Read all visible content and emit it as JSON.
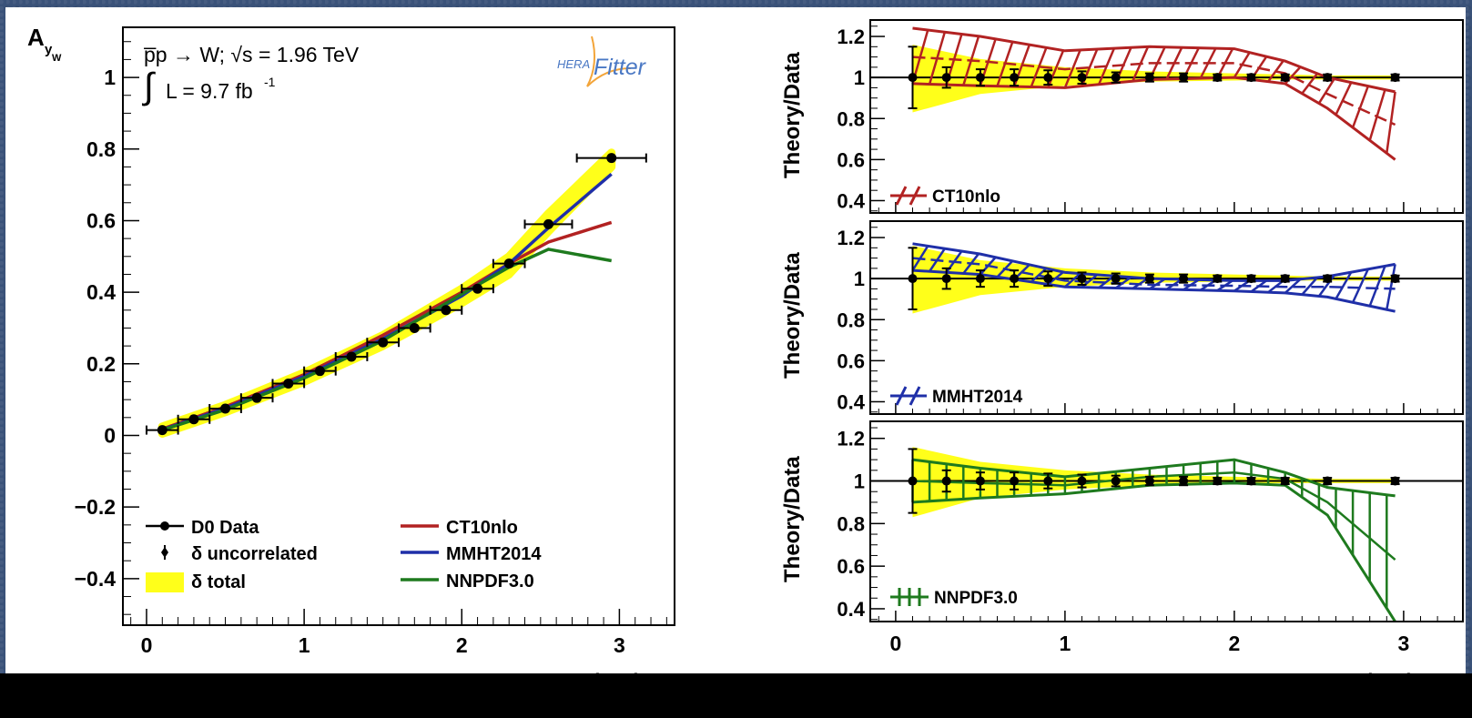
{
  "chart_data": [
    {
      "type": "line",
      "panel": "main",
      "ylabel_main": "A",
      "ylabel_sub": "y",
      "ylabel_subsub": "W",
      "xlabel_main": "|y",
      "xlabel_sub": "W",
      "xlabel_bar_end": "|",
      "xlim": [
        -0.15,
        3.35
      ],
      "ylim": [
        -0.53,
        1.14
      ],
      "xticks": [
        0,
        1,
        2,
        3
      ],
      "xtick_labels": [
        "0",
        "1",
        "2",
        "3"
      ],
      "yticks": [
        -0.4,
        -0.2,
        0,
        0.2,
        0.4,
        0.6,
        0.8,
        1
      ],
      "ytick_labels": [
        "−0.4",
        "−0.2",
        "0",
        "0.2",
        "0.4",
        "0.6",
        "0.8",
        "1"
      ],
      "process_label": "p̅p → W; √s = 1.96 TeV",
      "lumi_label": "L = 9.7 fb",
      "lumi_exp": "-1",
      "logo_hera": "HERA",
      "logo_fitter": "Fitter",
      "data": {
        "name": "D0 Data",
        "x": [
          0.1,
          0.3,
          0.5,
          0.7,
          0.9,
          1.1,
          1.3,
          1.5,
          1.7,
          1.9,
          2.1,
          2.3,
          2.55,
          2.95
        ],
        "y": [
          0.015,
          0.045,
          0.075,
          0.105,
          0.145,
          0.18,
          0.22,
          0.26,
          0.3,
          0.35,
          0.41,
          0.48,
          0.59,
          0.775
        ],
        "xerr": [
          0.1,
          0.1,
          0.1,
          0.1,
          0.1,
          0.1,
          0.1,
          0.1,
          0.1,
          0.1,
          0.1,
          0.1,
          0.15,
          0.22
        ],
        "yerr": [
          0.005,
          0.005,
          0.006,
          0.006,
          0.006,
          0.006,
          0.007,
          0.007,
          0.007,
          0.008,
          0.008,
          0.008,
          0.009,
          0.012
        ]
      },
      "total_band": {
        "x": [
          0.1,
          0.5,
          1.0,
          1.5,
          2.0,
          2.3,
          2.55,
          2.95
        ],
        "lo": [
          0.005,
          0.065,
          0.15,
          0.25,
          0.37,
          0.45,
          0.57,
          0.75
        ],
        "hi": [
          0.025,
          0.085,
          0.175,
          0.28,
          0.41,
          0.5,
          0.62,
          0.79
        ]
      },
      "series": [
        {
          "name": "CT10nlo",
          "color": "#b22222",
          "x": [
            0.1,
            0.5,
            1.0,
            1.5,
            2.0,
            2.3,
            2.55,
            2.95
          ],
          "y": [
            0.018,
            0.08,
            0.17,
            0.28,
            0.4,
            0.48,
            0.54,
            0.595
          ]
        },
        {
          "name": "MMHT2014",
          "color": "#1f2fa8",
          "x": [
            0.1,
            0.5,
            1.0,
            1.5,
            2.0,
            2.3,
            2.55,
            2.95
          ],
          "y": [
            0.016,
            0.076,
            0.165,
            0.27,
            0.39,
            0.48,
            0.58,
            0.73
          ]
        },
        {
          "name": "NNPDF3.0",
          "color": "#1e7a1e",
          "x": [
            0.1,
            0.5,
            1.0,
            1.5,
            2.0,
            2.3,
            2.55,
            2.95
          ],
          "y": [
            0.015,
            0.072,
            0.16,
            0.265,
            0.395,
            0.47,
            0.52,
            0.488
          ]
        }
      ],
      "legend": {
        "data_label": "D0 Data",
        "uncorrelated_label": "δ uncorrelated",
        "total_label": "δ total",
        "entries": [
          "CT10nlo",
          "MMHT2014",
          "NNPDF3.0"
        ]
      },
      "colors": {
        "band": "#ffff1a"
      }
    },
    {
      "type": "line",
      "panel": "ratio",
      "ylabel": "Theory/Data",
      "xlabel_main": "|y",
      "xlabel_sub": "W",
      "xlabel_bar_end": "|",
      "xlim": [
        -0.15,
        3.35
      ],
      "ylim": [
        0.34,
        1.28
      ],
      "xticks": [
        0,
        1,
        2,
        3
      ],
      "xtick_labels": [
        "0",
        "1",
        "2",
        "3"
      ],
      "yticks": [
        0.4,
        0.6,
        0.8,
        1,
        1.2
      ],
      "ytick_labels": [
        "0.4",
        "0.6",
        "0.8",
        "1",
        "1.2"
      ],
      "data_x": [
        0.1,
        0.3,
        0.5,
        0.7,
        0.9,
        1.1,
        1.3,
        1.5,
        1.7,
        1.9,
        2.1,
        2.3,
        2.55,
        2.95
      ],
      "data_err": [
        0.15,
        0.05,
        0.04,
        0.04,
        0.035,
        0.03,
        0.025,
        0.02,
        0.02,
        0.015,
        0.015,
        0.015,
        0.015,
        0.015
      ],
      "total_band": {
        "x": [
          0.1,
          0.5,
          1.0,
          1.5,
          2.0,
          2.3,
          2.55,
          2.95
        ],
        "lo": [
          0.83,
          0.92,
          0.96,
          0.98,
          0.985,
          0.99,
          0.99,
          0.99
        ],
        "hi": [
          1.16,
          1.09,
          1.05,
          1.03,
          1.02,
          1.015,
          1.01,
          1.01
        ]
      },
      "panels": [
        {
          "name": "CT10nlo",
          "color": "#b22222",
          "hatch": "cross",
          "x": [
            0.1,
            0.5,
            1.0,
            1.5,
            2.0,
            2.3,
            2.55,
            2.95
          ],
          "lo": [
            0.97,
            0.96,
            0.95,
            0.99,
            1.0,
            0.97,
            0.85,
            0.6
          ],
          "hi": [
            1.24,
            1.2,
            1.13,
            1.15,
            1.14,
            1.08,
            1.0,
            0.93
          ],
          "mid": [
            1.1,
            1.08,
            1.04,
            1.07,
            1.07,
            1.02,
            0.92,
            0.77
          ]
        },
        {
          "name": "MMHT2014",
          "color": "#1f2fa8",
          "hatch": "cross",
          "x": [
            0.1,
            0.5,
            1.0,
            1.5,
            2.0,
            2.3,
            2.55,
            2.95
          ],
          "lo": [
            1.04,
            1.02,
            0.96,
            0.95,
            0.94,
            0.93,
            0.91,
            0.84
          ],
          "hi": [
            1.17,
            1.12,
            1.03,
            1.0,
            0.99,
            0.99,
            1.01,
            1.07
          ],
          "mid": [
            1.1,
            1.07,
            0.99,
            0.97,
            0.965,
            0.96,
            0.96,
            0.95
          ]
        },
        {
          "name": "NNPDF3.0",
          "color": "#1e7a1e",
          "hatch": "vertical",
          "x": [
            0.1,
            0.5,
            1.0,
            1.5,
            2.0,
            2.3,
            2.55,
            2.95
          ],
          "lo": [
            0.9,
            0.92,
            0.94,
            0.98,
            0.99,
            0.98,
            0.84,
            0.34
          ],
          "hi": [
            1.1,
            1.06,
            1.02,
            1.06,
            1.1,
            1.04,
            0.97,
            0.93
          ],
          "mid": [
            1.0,
            0.99,
            0.98,
            1.02,
            1.04,
            1.01,
            0.9,
            0.63
          ]
        }
      ],
      "colors": {
        "band": "#ffff1a"
      }
    }
  ]
}
